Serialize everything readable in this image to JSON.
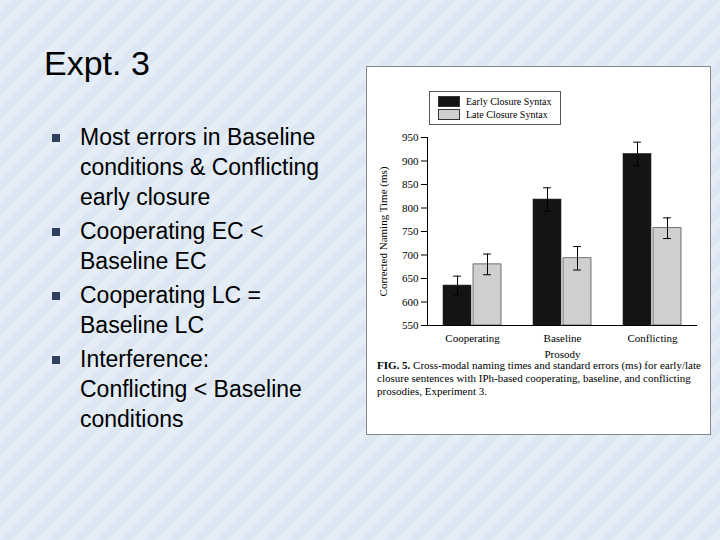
{
  "slide": {
    "title": "Expt. 3",
    "bullets": [
      "Most errors in Baseline conditions & Conflicting early closure",
      "Cooperating EC < Baseline EC",
      "Cooperating LC = Baseline LC",
      "Interference: Conflicting < Baseline conditions"
    ]
  },
  "chart_data": {
    "type": "bar",
    "x_label": "Prosody",
    "y_label": "Corrected Naming Time (ms)",
    "categories": [
      "Cooperating",
      "Baseline",
      "Conflicting"
    ],
    "series": [
      {
        "name": "Early Closure Syntax",
        "color": "#141414",
        "values": [
          635,
          818,
          915
        ],
        "errors": [
          20,
          25,
          25
        ]
      },
      {
        "name": "Late Closure Syntax",
        "color": "#cfcfcf",
        "values": [
          680,
          693,
          757
        ],
        "errors": [
          22,
          25,
          22
        ]
      }
    ],
    "ylim": [
      550,
      950
    ],
    "yticks": [
      550,
      600,
      650,
      700,
      750,
      800,
      850,
      900,
      950
    ],
    "legend": "top",
    "caption_label": "FIG. 5.",
    "caption": "Cross-modal naming times and standard errors (ms) for early/late closure sentences with IPh-based cooperating, baseline, and conflicting prosodies, Experiment 3."
  }
}
